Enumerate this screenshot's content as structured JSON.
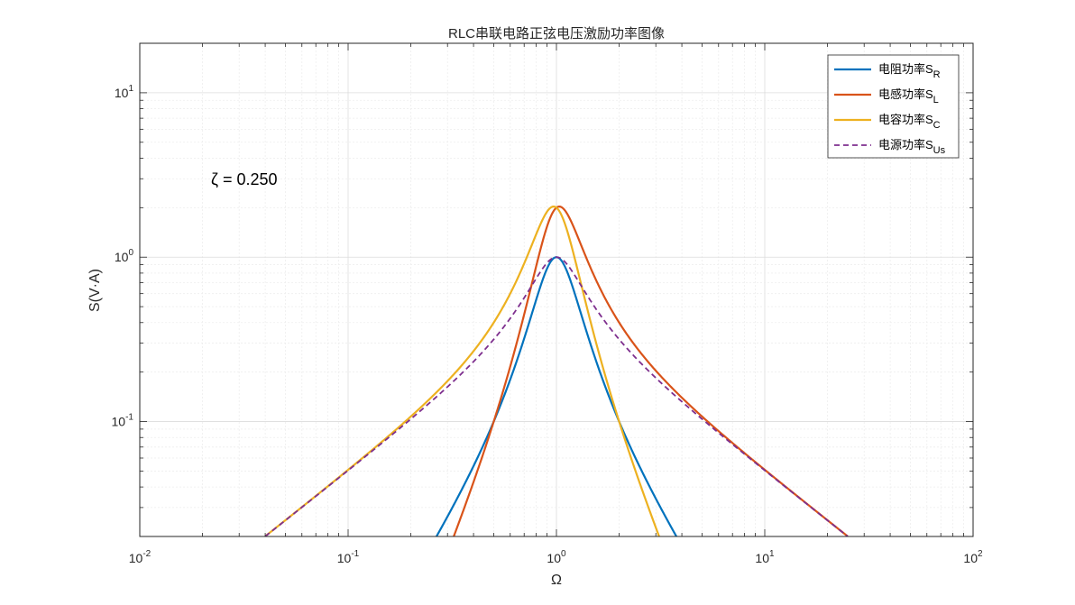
{
  "chart_data": {
    "type": "line",
    "title": "RLC串联电路正弦电压激励功率图像",
    "xlabel": "Ω",
    "ylabel": "S(V·A)",
    "xscale": "log",
    "yscale": "log",
    "xlim": [
      0.01,
      100
    ],
    "ylim": [
      0.02,
      20
    ],
    "grid": true,
    "legend_position": "top-right",
    "zeta": 0.25,
    "annotation": "ζ = 0.250",
    "x_ticks": [
      {
        "base": "10",
        "exp": "-2"
      },
      {
        "base": "10",
        "exp": "-1"
      },
      {
        "base": "10",
        "exp": "0"
      },
      {
        "base": "10",
        "exp": "1"
      },
      {
        "base": "10",
        "exp": "2"
      }
    ],
    "y_ticks": [
      {
        "base": "10",
        "exp": "-1"
      },
      {
        "base": "10",
        "exp": "0"
      },
      {
        "base": "10",
        "exp": "1"
      }
    ],
    "series": [
      {
        "name": "电阻功率S",
        "sub": "R",
        "color": "#0072BD",
        "dash": "solid",
        "formula": "resistor"
      },
      {
        "name": "电感功率S",
        "sub": "L",
        "color": "#D95319",
        "dash": "solid",
        "formula": "inductor"
      },
      {
        "name": "电容功率S",
        "sub": "C",
        "color": "#EDB120",
        "dash": "solid",
        "formula": "capacitor"
      },
      {
        "name": "电源功率S",
        "sub": "Us",
        "color": "#7E2F8E",
        "dash": "dashed",
        "formula": "source"
      }
    ]
  }
}
